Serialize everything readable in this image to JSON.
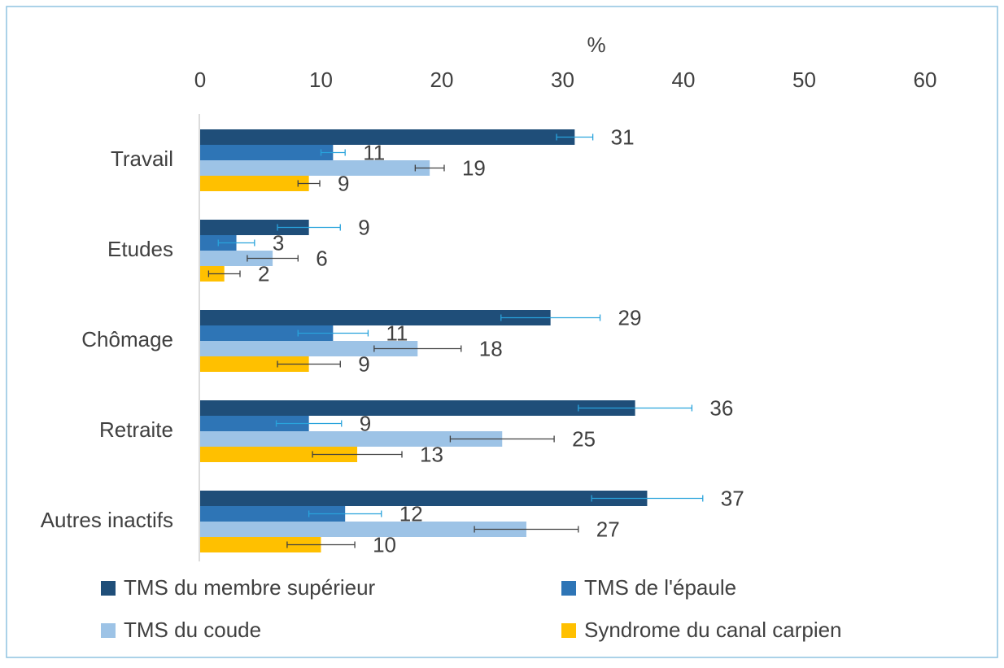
{
  "chart_data": {
    "type": "barh",
    "xlabel": "%",
    "categories": [
      "Travail",
      "Etudes",
      "Chômage",
      "Retraite",
      "Autres inactifs"
    ],
    "series": [
      {
        "name": "TMS du membre supérieur",
        "color": "#1f4e79",
        "error_color": "#29a3dc",
        "values": [
          31,
          9,
          29,
          36,
          37
        ],
        "errors": [
          1.5,
          2.6,
          4.1,
          4.7,
          4.6
        ]
      },
      {
        "name": "TMS de l'épaule",
        "color": "#2e75b6",
        "error_color": "#29a3dc",
        "values": [
          11,
          3,
          11,
          9,
          12
        ],
        "errors": [
          1.0,
          1.5,
          2.9,
          2.7,
          3.0
        ]
      },
      {
        "name": "TMS du coude",
        "color": "#9dc3e6",
        "error_color": "#404040",
        "values": [
          19,
          6,
          18,
          25,
          27
        ],
        "errors": [
          1.2,
          2.1,
          3.6,
          4.3,
          4.3
        ]
      },
      {
        "name": "Syndrome du canal carpien",
        "color": "#ffc000",
        "error_color": "#404040",
        "values": [
          9,
          2,
          9,
          13,
          10
        ],
        "errors": [
          0.9,
          1.3,
          2.6,
          3.7,
          2.8
        ]
      }
    ],
    "xlim": [
      0,
      60
    ],
    "xticks": [
      0,
      10,
      20,
      30,
      40,
      50,
      60
    ],
    "grid": false,
    "legend": "bottom"
  }
}
